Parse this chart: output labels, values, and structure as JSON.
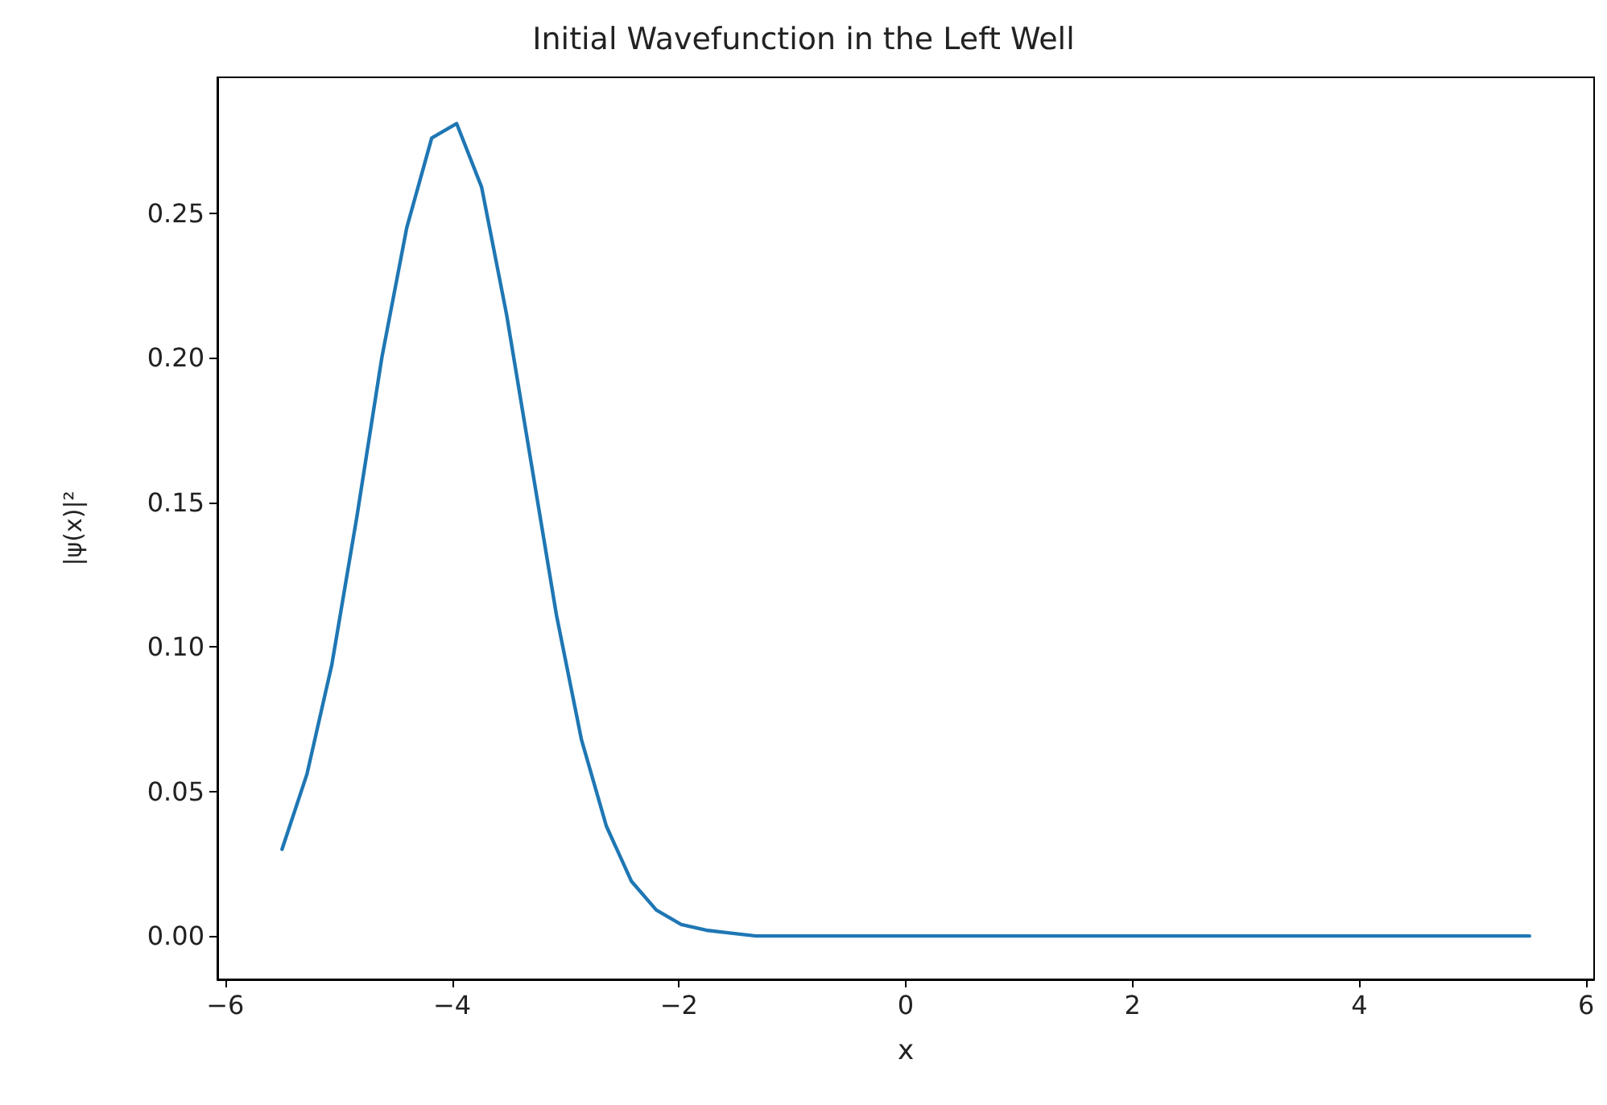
{
  "chart_data": {
    "type": "line",
    "title": "Initial Wavefunction in the Left Well",
    "xlabel": "x",
    "ylabel": "|ψ(x)|²",
    "xlim": [
      -6.07,
      6.07
    ],
    "xticks": [
      -6,
      -4,
      -2,
      0,
      2,
      4,
      6
    ],
    "ylim": [
      -0.015,
      0.297
    ],
    "yticks": [
      {
        "value": 0,
        "label": "0.00"
      },
      {
        "value": 0.05,
        "label": "0.05"
      },
      {
        "value": 0.1,
        "label": "0.10"
      },
      {
        "value": 0.15,
        "label": "0.15"
      },
      {
        "value": 0.2,
        "label": "0.20"
      },
      {
        "value": 0.25,
        "label": "0.25"
      }
    ],
    "grid": false,
    "marker": "none",
    "line_style": "solid",
    "series": [
      {
        "color": "#1f77b4",
        "x": [
          -5.5,
          -5.28,
          -5.06,
          -4.84,
          -4.62,
          -4.4,
          -4.18,
          -3.96,
          -3.74,
          -3.52,
          -3.3,
          -3.08,
          -2.86,
          -2.64,
          -2.42,
          -2.2,
          -1.98,
          -1.76,
          -1.54,
          -1.32,
          5.5
        ],
        "values": [
          0.03,
          0.056,
          0.094,
          0.145,
          0.2,
          0.245,
          0.276,
          0.281,
          0.259,
          0.215,
          0.163,
          0.111,
          0.068,
          0.038,
          0.019,
          0.009,
          0.004,
          0.002,
          0.001,
          0,
          0
        ]
      }
    ]
  }
}
